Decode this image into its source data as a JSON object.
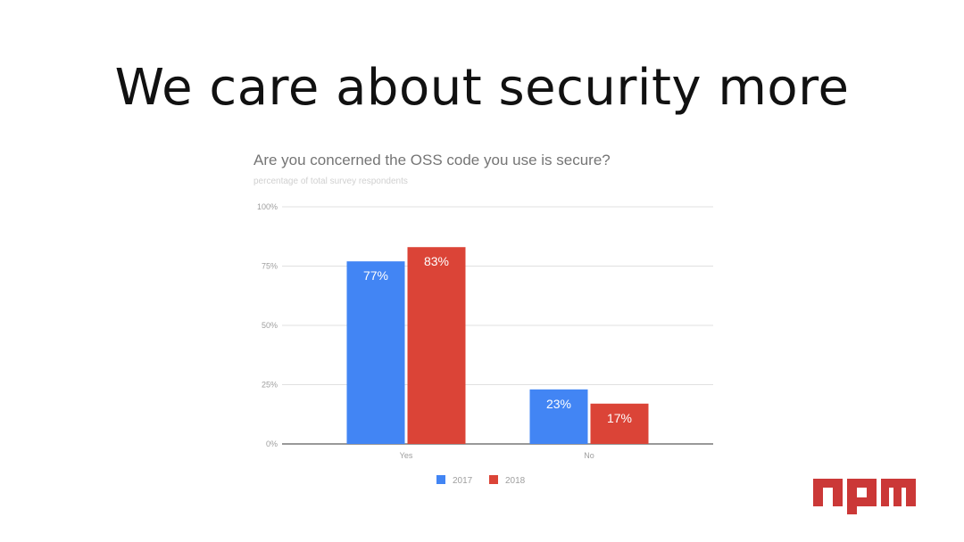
{
  "slide": {
    "title": "We care about security more"
  },
  "logo": {
    "text": "npm",
    "color": "#cb3837"
  },
  "chart_data": {
    "type": "bar",
    "title": "Are you concerned the OSS code you use is secure?",
    "subtitle": "percentage of total survey respondents",
    "categories": [
      "Yes",
      "No"
    ],
    "series": [
      {
        "name": "2017",
        "values": [
          77,
          23
        ],
        "labels": [
          "77%",
          "23%"
        ],
        "color": "#4285f4"
      },
      {
        "name": "2018",
        "values": [
          83,
          17
        ],
        "labels": [
          "83%",
          "17%"
        ],
        "color": "#db4437"
      }
    ],
    "y_ticks": [
      "0%",
      "25%",
      "50%",
      "75%",
      "100%"
    ],
    "ylim": [
      0,
      100
    ],
    "grid": true,
    "legend_position": "bottom"
  }
}
